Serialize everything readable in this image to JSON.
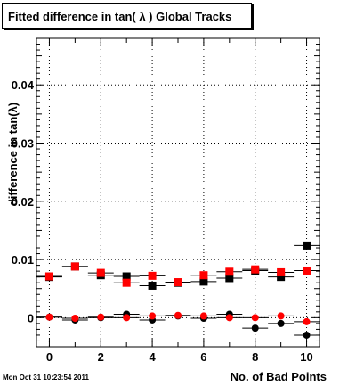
{
  "header": {
    "title": "Fitted difference in tan( λ )  Global Tracks"
  },
  "footer": {
    "timestamp": "Mon Oct 31 10:23:54 2011"
  },
  "chart_data": {
    "type": "scatter",
    "title": "Fitted difference in tan( λ )  Global Tracks",
    "xlabel": "No. of Bad Points",
    "ylabel": "difference in tan(λ)",
    "xlim": [
      -0.5,
      10.5
    ],
    "ylim": [
      -0.005,
      0.048
    ],
    "x_ticks": [
      0,
      2,
      4,
      6,
      8,
      10
    ],
    "y_ticks": [
      0,
      0.01,
      0.02,
      0.03,
      0.04
    ],
    "y_tick_labels": [
      "0",
      "0.01",
      "0.02",
      "0.03",
      "0.04"
    ],
    "grid": true,
    "x_errors": 0.5,
    "series": [
      {
        "marker": "square",
        "color": "#000000",
        "x": [
          0,
          1,
          2,
          3,
          4,
          5,
          6,
          7,
          8,
          9,
          10
        ],
        "y": [
          0.007,
          0.0088,
          0.0073,
          0.0071,
          0.0055,
          0.006,
          0.0062,
          0.0068,
          0.0081,
          0.007,
          0.0124
        ]
      },
      {
        "marker": "square",
        "color": "#ff0000",
        "x": [
          0,
          1,
          2,
          3,
          4,
          5,
          6,
          7,
          8,
          9,
          10
        ],
        "y": [
          0.0071,
          0.0088,
          0.0077,
          0.006,
          0.0072,
          0.0061,
          0.0073,
          0.0079,
          0.0083,
          0.0078,
          0.0081
        ]
      },
      {
        "marker": "circle",
        "color": "#000000",
        "x": [
          0,
          1,
          2,
          3,
          4,
          5,
          6,
          7,
          8,
          9,
          10
        ],
        "y": [
          0.0001,
          -0.0004,
          0.0,
          0.0006,
          -0.0004,
          0.0003,
          -0.0001,
          0.0006,
          -0.0018,
          -0.001,
          -0.003
        ]
      },
      {
        "marker": "circle",
        "color": "#ff0000",
        "x": [
          0,
          1,
          2,
          3,
          4,
          5,
          6,
          7,
          8,
          9,
          10
        ],
        "y": [
          0.0001,
          -0.0001,
          0.0001,
          0.0,
          0.0003,
          0.0004,
          0.0003,
          0.0,
          0.0,
          0.0003,
          -0.0007
        ]
      }
    ]
  }
}
